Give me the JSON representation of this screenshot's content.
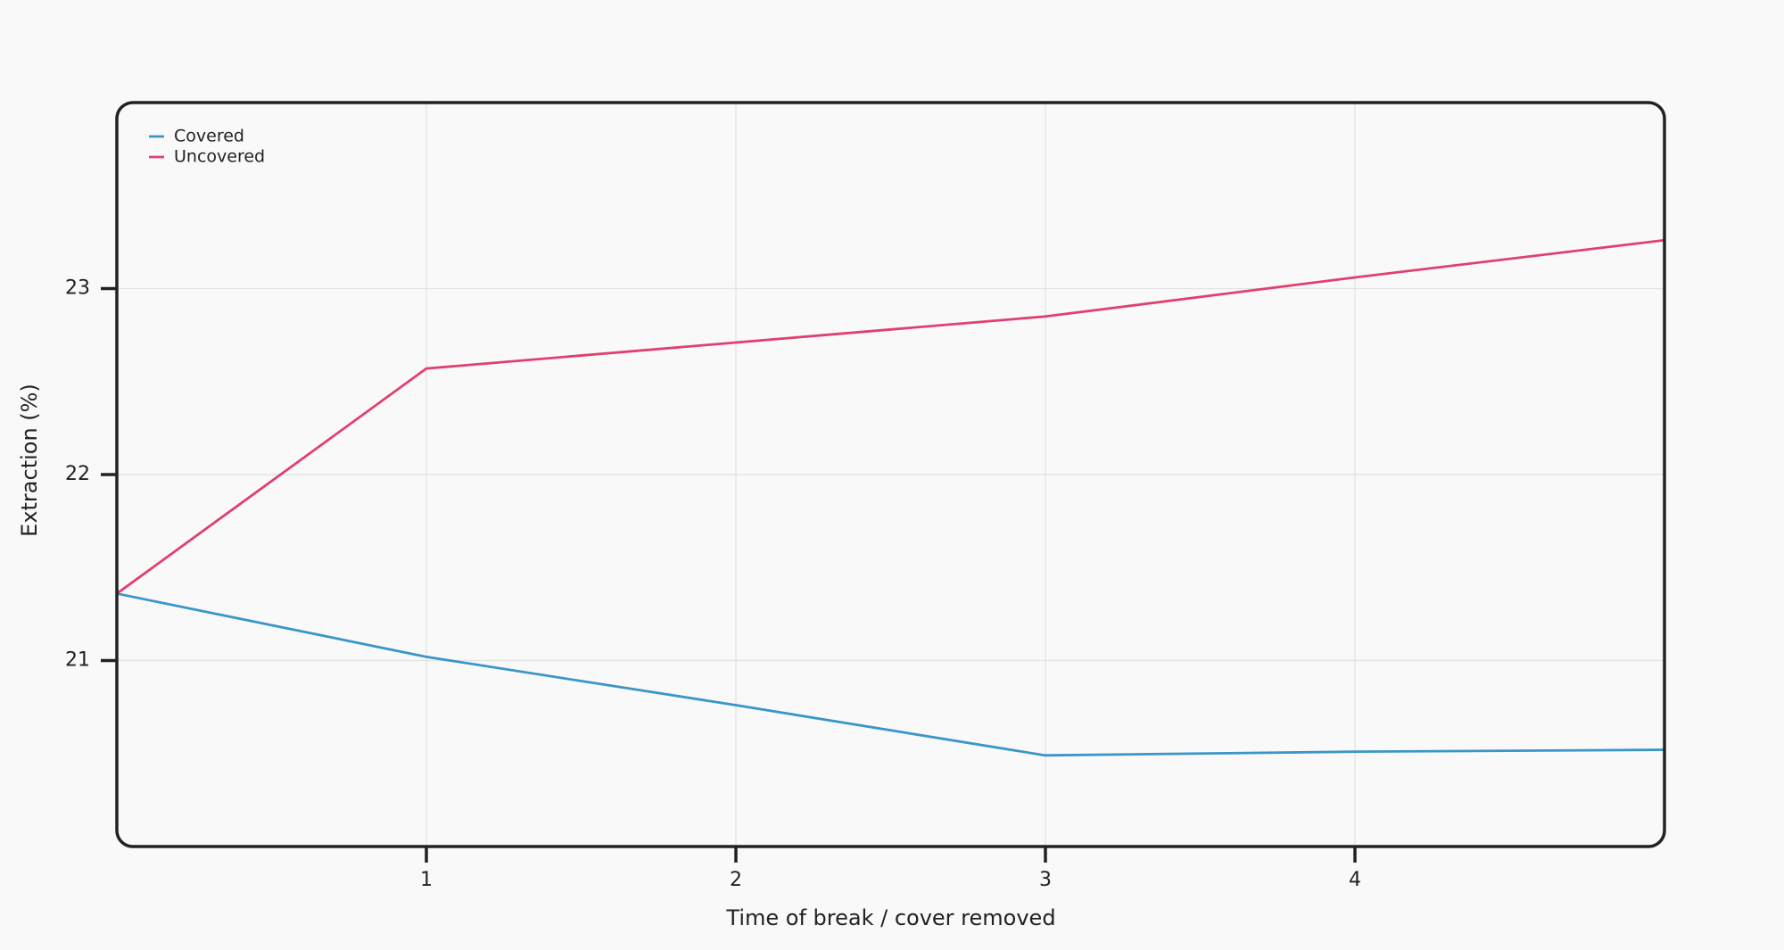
{
  "chart_data": {
    "type": "line",
    "x_label": "Time of break / cover removed",
    "y_label": "Extraction (%)",
    "x": [
      0,
      1,
      2,
      3,
      4,
      5
    ],
    "series": [
      {
        "name": "Covered",
        "color": "#3a96c8",
        "values": [
          21.36,
          21.02,
          20.76,
          20.49,
          20.51,
          20.52
        ]
      },
      {
        "name": "Uncovered",
        "color": "#e0406e",
        "values": [
          21.36,
          22.57,
          22.71,
          22.85,
          23.06,
          23.26
        ]
      }
    ],
    "xlim": [
      0,
      5
    ],
    "xticks": [
      1,
      2,
      3,
      4
    ],
    "ylim": [
      20,
      24
    ],
    "yticks": [
      21,
      22,
      23
    ],
    "grid": true,
    "legend": "top-left"
  }
}
